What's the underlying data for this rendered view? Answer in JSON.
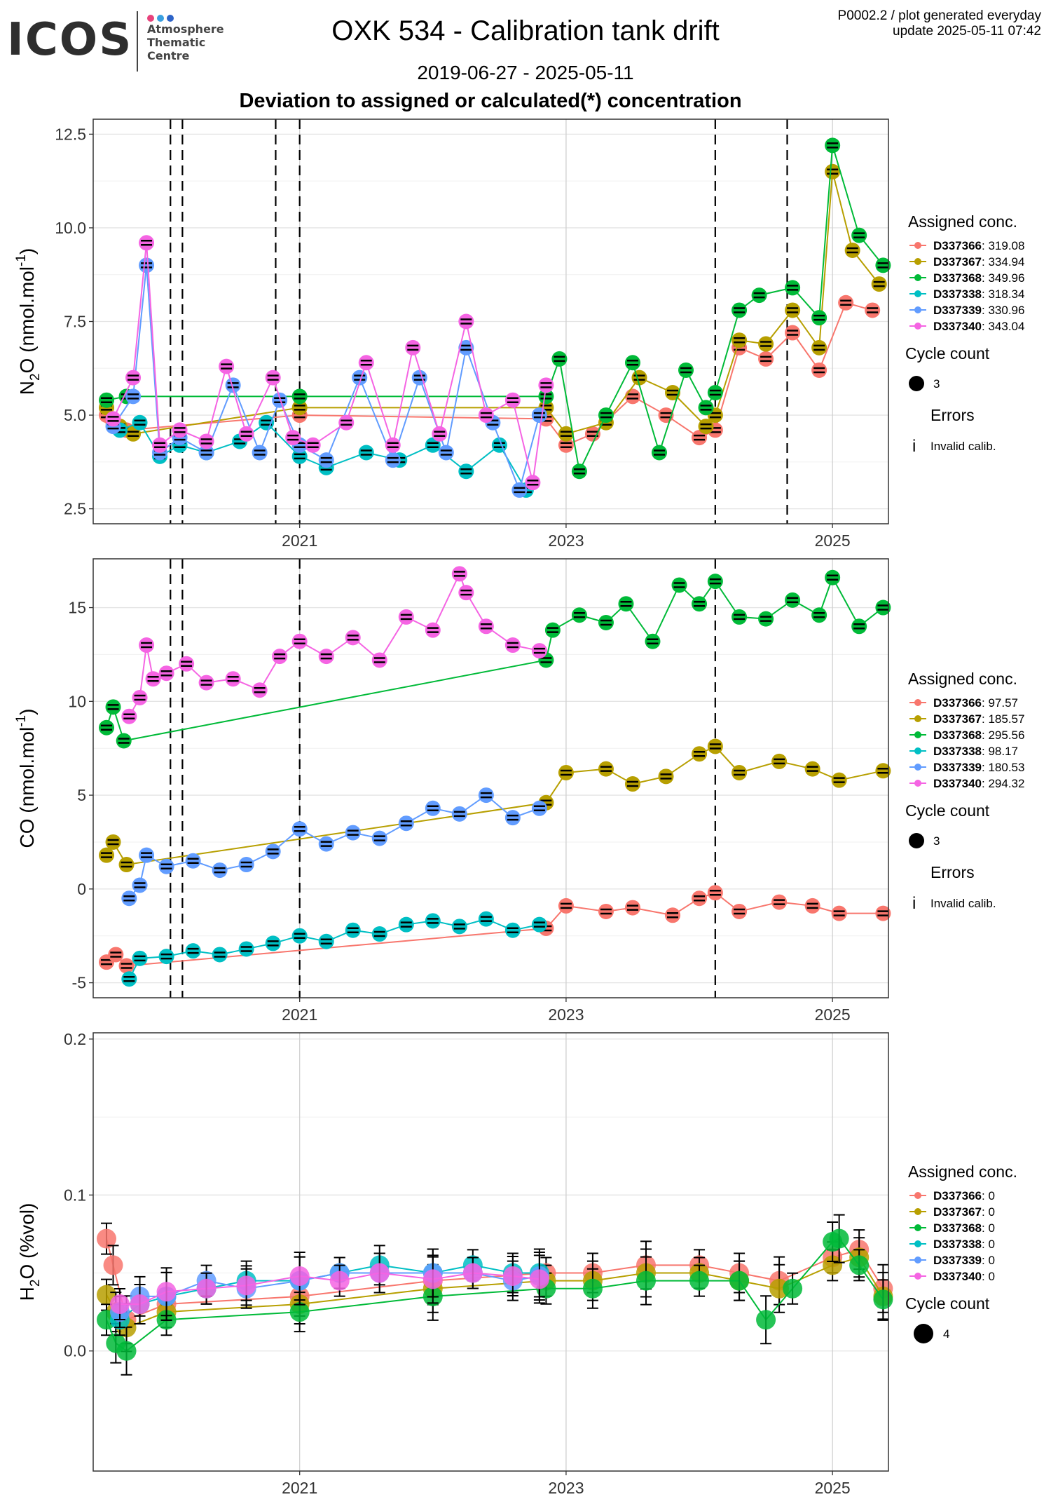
{
  "logo": {
    "text": "ICOS",
    "subtext": "Atmosphere\nThematic\nCentre",
    "dot_colors": [
      "#e8437c",
      "#3aa0e0",
      "#2d63c8"
    ]
  },
  "header": {
    "title": "OXK 534 - Calibration tank drift",
    "subtitle": "2019-06-27 - 2025-05-11",
    "heading": "Deviation to assigned or calculated(*) concentration",
    "meta_line1": "P0002.2 / plot generated everyday",
    "meta_line2": "update  2025-05-11 07:42"
  },
  "colors": {
    "D337366": "#F8766D",
    "D337367": "#B79F00",
    "D337368": "#00BA38",
    "D337338": "#00BFC4",
    "D337339": "#619CFF",
    "D337340": "#F564E3"
  },
  "chart_data": [
    {
      "type": "scatter",
      "ylabel_main": "N",
      "ylabel_sub": "2",
      "ylabel_rest": "O (nmol.mol",
      "ylabel_sup": "-1",
      "ylabel_end": ")",
      "xlim": [
        2019.45,
        2025.42
      ],
      "ylim": [
        2.1,
        12.9
      ],
      "yticks": [
        2.5,
        5.0,
        7.5,
        10.0,
        12.5
      ],
      "ytick_labels": [
        "2.5",
        "5.0",
        "7.5",
        "10.0",
        "12.5"
      ],
      "xticks": [
        2021,
        2023,
        2025
      ],
      "xtick_labels": [
        "2021",
        "2023",
        "2025"
      ],
      "vlines": [
        2020.03,
        2020.12,
        2020.82,
        2021.0,
        2024.12,
        2024.66
      ],
      "legend": {
        "title": "Assigned conc.",
        "entries": [
          {
            "tank": "D337366",
            "value": "319.08"
          },
          {
            "tank": "D337367",
            "value": "334.94"
          },
          {
            "tank": "D337368",
            "value": "349.96"
          },
          {
            "tank": "D337338",
            "value": "318.34"
          },
          {
            "tank": "D337339",
            "value": "330.96"
          },
          {
            "tank": "D337340",
            "value": "343.04"
          }
        ],
        "cycle_title": "Cycle count",
        "cycle_value": "3",
        "errors_title": "Errors",
        "errors_label": "Invalid calib."
      },
      "series": [
        {
          "name": "D337366",
          "x": [
            2019.55,
            2019.6,
            2019.7,
            2021.0,
            2022.85,
            2023.0,
            2023.2,
            2023.5,
            2023.75,
            2024.0,
            2024.12,
            2024.3,
            2024.5,
            2024.7,
            2024.9,
            2025.1,
            2025.3
          ],
          "y": [
            5.0,
            4.8,
            4.6,
            5.0,
            4.9,
            4.2,
            4.5,
            5.5,
            5.0,
            4.4,
            4.6,
            6.8,
            6.5,
            7.2,
            6.2,
            8.0,
            7.8
          ]
        },
        {
          "name": "D337367",
          "x": [
            2019.55,
            2019.65,
            2019.75,
            2021.0,
            2022.85,
            2023.0,
            2023.3,
            2023.55,
            2023.8,
            2024.05,
            2024.12,
            2024.3,
            2024.5,
            2024.7,
            2024.9,
            2025.0,
            2025.15,
            2025.35
          ],
          "y": [
            5.2,
            4.7,
            4.5,
            5.2,
            5.2,
            4.5,
            4.8,
            6.0,
            5.6,
            4.7,
            5.0,
            7.0,
            6.9,
            7.8,
            6.8,
            11.5,
            9.4,
            8.5
          ]
        },
        {
          "name": "D337368",
          "x": [
            2019.55,
            2019.7,
            2021.0,
            2022.85,
            2022.95,
            2023.1,
            2023.3,
            2023.5,
            2023.7,
            2023.9,
            2024.05,
            2024.12,
            2024.3,
            2024.45,
            2024.7,
            2024.9,
            2025.0,
            2025.2,
            2025.38
          ],
          "y": [
            5.4,
            5.5,
            5.5,
            5.5,
            6.5,
            3.5,
            5.0,
            6.4,
            4.0,
            6.2,
            5.2,
            5.6,
            7.8,
            8.2,
            8.4,
            7.6,
            12.2,
            9.8,
            9.0
          ]
        },
        {
          "name": "D337338",
          "x": [
            2019.65,
            2019.8,
            2019.95,
            2020.1,
            2020.3,
            2020.55,
            2020.75,
            2021.0,
            2021.2,
            2021.5,
            2021.75,
            2022.0,
            2022.25,
            2022.5,
            2022.7
          ],
          "y": [
            4.6,
            4.8,
            3.9,
            4.2,
            4.0,
            4.3,
            4.8,
            3.9,
            3.6,
            4.0,
            3.8,
            4.2,
            3.5,
            4.2,
            3.0
          ]
        },
        {
          "name": "D337339",
          "x": [
            2019.6,
            2019.75,
            2019.85,
            2019.95,
            2020.1,
            2020.3,
            2020.5,
            2020.7,
            2020.85,
            2021.0,
            2021.2,
            2021.45,
            2021.7,
            2021.9,
            2022.1,
            2022.25,
            2022.45,
            2022.65,
            2022.8
          ],
          "y": [
            4.7,
            5.5,
            9.0,
            4.0,
            4.4,
            4.0,
            5.8,
            4.0,
            5.4,
            4.2,
            3.8,
            6.0,
            3.8,
            6.0,
            4.0,
            6.8,
            4.8,
            3.0,
            5.0
          ]
        },
        {
          "name": "D337340",
          "x": [
            2019.6,
            2019.75,
            2019.85,
            2019.95,
            2020.1,
            2020.3,
            2020.45,
            2020.6,
            2020.8,
            2020.95,
            2021.1,
            2021.35,
            2021.5,
            2021.7,
            2021.85,
            2022.05,
            2022.25,
            2022.4,
            2022.6,
            2022.75,
            2022.85
          ],
          "y": [
            4.9,
            6.0,
            9.6,
            4.2,
            4.6,
            4.3,
            6.3,
            4.5,
            6.0,
            4.4,
            4.2,
            4.8,
            6.4,
            4.2,
            6.8,
            4.5,
            7.5,
            5.0,
            5.4,
            3.2,
            5.8
          ]
        }
      ]
    },
    {
      "type": "scatter",
      "ylabel_main": "CO (nmol.mol",
      "ylabel_sup": "-1",
      "ylabel_end": ")",
      "xlim": [
        2019.45,
        2025.42
      ],
      "ylim": [
        -5.8,
        17.6
      ],
      "yticks": [
        -5,
        0,
        5,
        10,
        15
      ],
      "ytick_labels": [
        "-5",
        "0",
        "5",
        "10",
        "15"
      ],
      "xticks": [
        2021,
        2023,
        2025
      ],
      "xtick_labels": [
        "2021",
        "2023",
        "2025"
      ],
      "vlines": [
        2020.03,
        2020.12,
        2021.0,
        2024.12
      ],
      "legend": {
        "title": "Assigned conc.",
        "entries": [
          {
            "tank": "D337366",
            "value": "97.57"
          },
          {
            "tank": "D337367",
            "value": "185.57"
          },
          {
            "tank": "D337368",
            "value": "295.56"
          },
          {
            "tank": "D337338",
            "value": "98.17"
          },
          {
            "tank": "D337339",
            "value": "180.53"
          },
          {
            "tank": "D337340",
            "value": "294.32"
          }
        ],
        "cycle_title": "Cycle count",
        "cycle_value": "3",
        "errors_title": "Errors",
        "errors_label": "Invalid calib."
      },
      "series": [
        {
          "name": "D337366",
          "x": [
            2019.55,
            2019.62,
            2019.7,
            2022.85,
            2023.0,
            2023.3,
            2023.5,
            2023.8,
            2024.0,
            2024.12,
            2024.3,
            2024.6,
            2024.85,
            2025.05,
            2025.38
          ],
          "y": [
            -3.9,
            -3.5,
            -4.1,
            -2.1,
            -0.9,
            -1.2,
            -1.0,
            -1.4,
            -0.5,
            -0.2,
            -1.2,
            -0.7,
            -0.9,
            -1.3,
            -1.3
          ]
        },
        {
          "name": "D337367",
          "x": [
            2019.55,
            2019.6,
            2019.7,
            2022.85,
            2023.0,
            2023.3,
            2023.5,
            2023.75,
            2024.0,
            2024.12,
            2024.3,
            2024.6,
            2024.85,
            2025.05,
            2025.38
          ],
          "y": [
            1.8,
            2.5,
            1.3,
            4.6,
            6.2,
            6.4,
            5.6,
            6.0,
            7.2,
            7.6,
            6.2,
            6.8,
            6.4,
            5.8,
            6.3
          ]
        },
        {
          "name": "D337368",
          "x": [
            2019.55,
            2019.6,
            2019.68,
            2022.85,
            2022.9,
            2023.1,
            2023.3,
            2023.45,
            2023.65,
            2023.85,
            2024.0,
            2024.12,
            2024.3,
            2024.5,
            2024.7,
            2024.9,
            2025.0,
            2025.2,
            2025.38
          ],
          "y": [
            8.6,
            9.7,
            7.9,
            12.2,
            13.8,
            14.6,
            14.2,
            15.2,
            13.2,
            16.2,
            15.2,
            16.4,
            14.5,
            14.4,
            15.4,
            14.6,
            16.6,
            14.0,
            15.0
          ]
        },
        {
          "name": "D337338",
          "x": [
            2019.72,
            2019.8,
            2020.0,
            2020.2,
            2020.4,
            2020.6,
            2020.8,
            2021.0,
            2021.2,
            2021.4,
            2021.6,
            2021.8,
            2022.0,
            2022.2,
            2022.4,
            2022.6,
            2022.8
          ],
          "y": [
            -4.8,
            -3.7,
            -3.6,
            -3.3,
            -3.5,
            -3.2,
            -2.9,
            -2.5,
            -2.8,
            -2.2,
            -2.4,
            -1.9,
            -1.7,
            -2.0,
            -1.6,
            -2.2,
            -1.9
          ]
        },
        {
          "name": "D337339",
          "x": [
            2019.72,
            2019.8,
            2019.85,
            2020.0,
            2020.2,
            2020.4,
            2020.6,
            2020.8,
            2021.0,
            2021.2,
            2021.4,
            2021.6,
            2021.8,
            2022.0,
            2022.2,
            2022.4,
            2022.6,
            2022.8
          ],
          "y": [
            -0.5,
            0.2,
            1.8,
            1.2,
            1.5,
            1.0,
            1.3,
            2.0,
            3.2,
            2.4,
            3.0,
            2.7,
            3.5,
            4.3,
            4.0,
            5.0,
            3.8,
            4.3
          ]
        },
        {
          "name": "D337340",
          "x": [
            2019.72,
            2019.8,
            2019.85,
            2019.9,
            2020.0,
            2020.15,
            2020.3,
            2020.5,
            2020.7,
            2020.85,
            2021.0,
            2021.2,
            2021.4,
            2021.6,
            2021.8,
            2022.0,
            2022.2,
            2022.25,
            2022.4,
            2022.6,
            2022.8
          ],
          "y": [
            9.2,
            10.2,
            13.0,
            11.2,
            11.5,
            12.0,
            11.0,
            11.2,
            10.6,
            12.4,
            13.2,
            12.4,
            13.4,
            12.2,
            14.5,
            13.8,
            16.8,
            15.8,
            14.0,
            13.0,
            12.7
          ]
        }
      ]
    },
    {
      "type": "scatter",
      "ylabel_main": "H",
      "ylabel_sub": "2",
      "ylabel_rest": "O (%vol)",
      "xlim": [
        2019.45,
        2025.42
      ],
      "ylim": [
        -0.077,
        0.204
      ],
      "yticks": [
        0.0,
        0.1,
        0.2
      ],
      "ytick_labels": [
        "0.0",
        "0.1",
        "0.2"
      ],
      "xticks": [
        2021,
        2023,
        2025
      ],
      "xtick_labels": [
        "2021",
        "2023",
        "2025"
      ],
      "vlines": [],
      "legend": {
        "title": "Assigned conc.",
        "entries": [
          {
            "tank": "D337366",
            "value": "0"
          },
          {
            "tank": "D337367",
            "value": "0"
          },
          {
            "tank": "D337368",
            "value": "0"
          },
          {
            "tank": "D337338",
            "value": "0"
          },
          {
            "tank": "D337339",
            "value": "0"
          },
          {
            "tank": "D337340",
            "value": "0"
          }
        ],
        "cycle_title": "Cycle count",
        "cycle_value": "4",
        "errors_title": "",
        "errors_label": ""
      },
      "series": [
        {
          "name": "D337366",
          "x": [
            2019.55,
            2019.6,
            2019.7,
            2020.0,
            2021.0,
            2022.0,
            2022.85,
            2023.2,
            2023.6,
            2024.0,
            2024.3,
            2024.6,
            2025.0,
            2025.2,
            2025.38
          ],
          "y": [
            0.072,
            0.055,
            0.02,
            0.03,
            0.035,
            0.045,
            0.05,
            0.05,
            0.055,
            0.055,
            0.05,
            0.045,
            0.06,
            0.065,
            0.04
          ]
        },
        {
          "name": "D337367",
          "x": [
            2019.55,
            2019.62,
            2019.7,
            2020.0,
            2021.0,
            2022.0,
            2022.85,
            2023.2,
            2023.6,
            2024.0,
            2024.3,
            2024.6,
            2025.0,
            2025.2,
            2025.38
          ],
          "y": [
            0.036,
            0.025,
            0.015,
            0.025,
            0.03,
            0.04,
            0.045,
            0.045,
            0.05,
            0.05,
            0.045,
            0.04,
            0.055,
            0.06,
            0.035
          ]
        },
        {
          "name": "D337368",
          "x": [
            2019.55,
            2019.62,
            2019.7,
            2020.0,
            2021.0,
            2022.0,
            2022.85,
            2023.2,
            2023.6,
            2024.0,
            2024.3,
            2024.5,
            2024.7,
            2025.0,
            2025.05,
            2025.2,
            2025.38
          ],
          "y": [
            0.02,
            0.005,
            0.0,
            0.02,
            0.025,
            0.035,
            0.04,
            0.04,
            0.045,
            0.045,
            0.045,
            0.02,
            0.04,
            0.07,
            0.072,
            0.055,
            0.033
          ]
        },
        {
          "name": "D337338",
          "x": [
            2019.65,
            2019.8,
            2020.0,
            2020.3,
            2020.6,
            2021.0,
            2021.3,
            2021.6,
            2022.0,
            2022.3,
            2022.6,
            2022.8
          ],
          "y": [
            0.02,
            0.03,
            0.035,
            0.04,
            0.045,
            0.045,
            0.05,
            0.055,
            0.05,
            0.055,
            0.05,
            0.05
          ]
        },
        {
          "name": "D337339",
          "x": [
            2019.65,
            2019.8,
            2020.0,
            2020.3,
            2020.6,
            2021.0,
            2021.3,
            2021.6,
            2022.0,
            2022.3,
            2022.6,
            2022.8
          ],
          "y": [
            0.025,
            0.035,
            0.035,
            0.045,
            0.04,
            0.045,
            0.05,
            0.05,
            0.05,
            0.05,
            0.045,
            0.048
          ]
        },
        {
          "name": "D337340",
          "x": [
            2019.65,
            2019.8,
            2020.0,
            2020.3,
            2020.6,
            2021.0,
            2021.3,
            2021.6,
            2022.0,
            2022.3,
            2022.6,
            2022.8
          ],
          "y": [
            0.03,
            0.03,
            0.038,
            0.04,
            0.042,
            0.048,
            0.045,
            0.05,
            0.046,
            0.05,
            0.048,
            0.046
          ]
        }
      ]
    }
  ]
}
